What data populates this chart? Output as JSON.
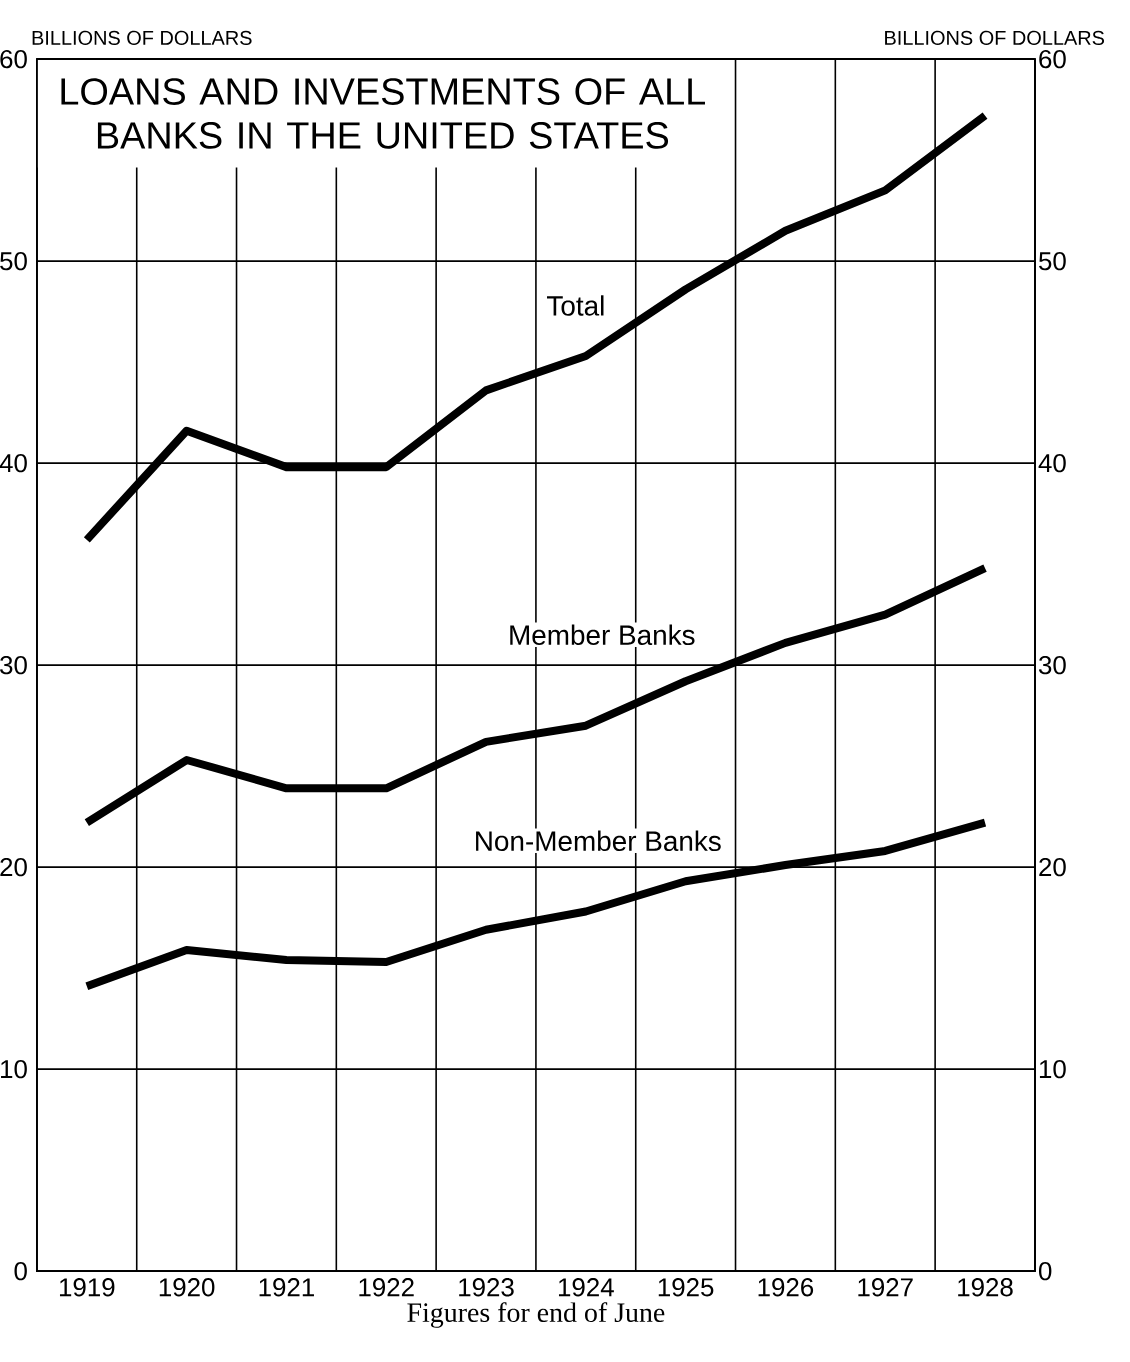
{
  "chart_data": {
    "type": "line",
    "title": "LOANS AND INVESTMENTS OF ALL BANKS IN THE UNITED STATES",
    "xlabel": "Figures for end of June",
    "ylabel": "BILLIONS OF DOLLARS",
    "y2label": "BILLIONS OF DOLLARS",
    "categories": [
      "1919",
      "1920",
      "1921",
      "1922",
      "1923",
      "1924",
      "1925",
      "1926",
      "1927",
      "1928"
    ],
    "series": [
      {
        "name": "Total",
        "color": "#000000",
        "values": [
          36.2,
          41.6,
          39.8,
          39.8,
          43.6,
          45.3,
          48.6,
          51.5,
          53.5,
          57.2
        ]
      },
      {
        "name": "Member Banks",
        "color": "#000000",
        "values": [
          22.2,
          25.3,
          23.9,
          23.9,
          26.2,
          27.0,
          29.2,
          31.1,
          32.5,
          34.8
        ]
      },
      {
        "name": "Non-Member Banks",
        "color": "#000000",
        "values": [
          14.1,
          15.9,
          15.4,
          15.3,
          16.9,
          17.8,
          19.3,
          20.1,
          20.8,
          22.2
        ]
      }
    ],
    "ylim": [
      0,
      60
    ],
    "yticks": [
      0,
      10,
      20,
      30,
      40,
      50,
      60
    ],
    "y2lim": [
      0,
      60
    ],
    "y2ticks": [
      0,
      10,
      20,
      30,
      40,
      50,
      60
    ],
    "grid": true,
    "marker": "none",
    "line_style": "solid"
  }
}
